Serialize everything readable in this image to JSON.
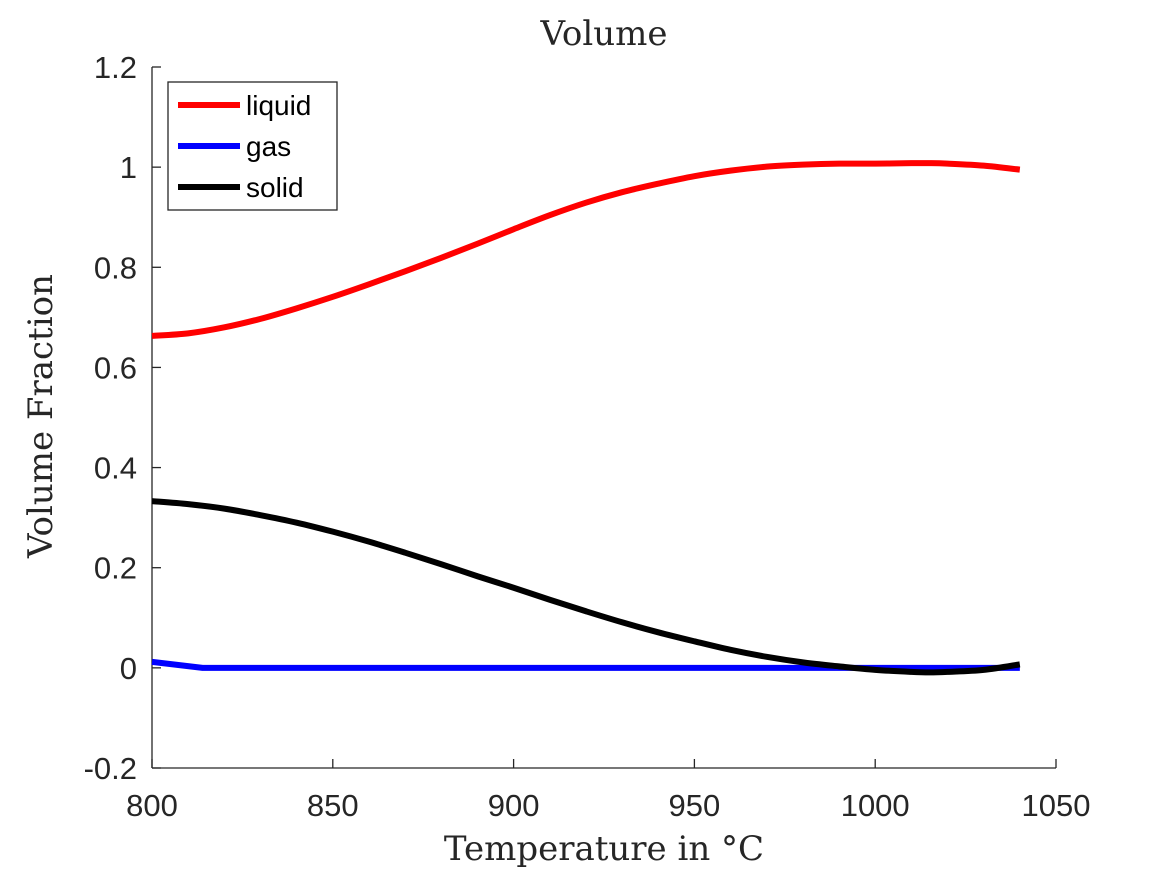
{
  "chart_data": {
    "type": "line",
    "title": "Volume",
    "xlabel": "Temperature in °C",
    "ylabel": "Volume Fraction",
    "xlim": [
      800,
      1050
    ],
    "ylim": [
      -0.2,
      1.2
    ],
    "xticks": [
      800,
      850,
      900,
      950,
      1000,
      1050
    ],
    "xtick_labels": [
      "800",
      "850",
      "900",
      "950",
      "1000",
      "1050"
    ],
    "yticks": [
      -0.2,
      0,
      0.2,
      0.4,
      0.6,
      0.8,
      1,
      1.2
    ],
    "ytick_labels": [
      "-0.2",
      "0",
      "0.2",
      "0.4",
      "0.6",
      "0.8",
      "1",
      "1.2"
    ],
    "grid": false,
    "legend_position": "top-left",
    "series": [
      {
        "name": "liquid",
        "color": "#ff0000",
        "x": [
          800,
          810,
          820,
          830,
          840,
          850,
          860,
          870,
          880,
          890,
          900,
          910,
          920,
          930,
          940,
          950,
          960,
          970,
          980,
          990,
          1000,
          1010,
          1015,
          1020,
          1030,
          1040
        ],
        "y": [
          0.663,
          0.668,
          0.68,
          0.697,
          0.718,
          0.741,
          0.766,
          0.792,
          0.819,
          0.847,
          0.876,
          0.904,
          0.929,
          0.95,
          0.967,
          0.982,
          0.993,
          1.001,
          1.005,
          1.007,
          1.007,
          1.008,
          1.008,
          1.007,
          1.003,
          0.995
        ]
      },
      {
        "name": "gas",
        "color": "#0000ff",
        "x": [
          800,
          814,
          850,
          900,
          950,
          1000,
          1040
        ],
        "y": [
          0.012,
          0.0,
          0.0,
          0.0,
          0.0,
          0.0,
          0.0
        ]
      },
      {
        "name": "solid",
        "color": "#000000",
        "x": [
          800,
          810,
          820,
          830,
          840,
          850,
          860,
          870,
          880,
          890,
          900,
          910,
          920,
          930,
          940,
          950,
          960,
          970,
          980,
          990,
          1000,
          1010,
          1015,
          1020,
          1030,
          1040
        ],
        "y": [
          0.333,
          0.327,
          0.318,
          0.305,
          0.29,
          0.272,
          0.252,
          0.23,
          0.207,
          0.183,
          0.16,
          0.136,
          0.113,
          0.091,
          0.071,
          0.053,
          0.036,
          0.022,
          0.011,
          0.003,
          -0.004,
          -0.008,
          -0.009,
          -0.008,
          -0.004,
          0.007
        ]
      }
    ]
  }
}
